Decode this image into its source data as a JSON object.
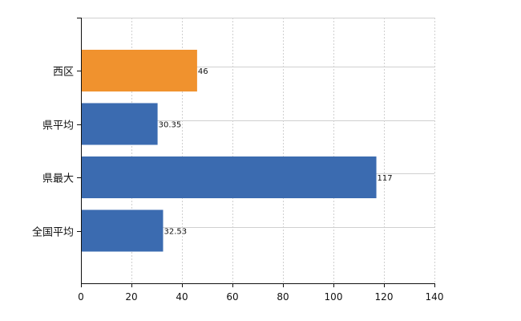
{
  "chart_data": {
    "type": "bar",
    "orientation": "horizontal",
    "categories": [
      "西区",
      "県平均",
      "県最大",
      "全国平均"
    ],
    "values": [
      46,
      30.35,
      117,
      32.53
    ],
    "value_labels": [
      "46",
      "30.35",
      "117",
      "32.53"
    ],
    "bar_colors": [
      "#f0922e",
      "#3b6bb0",
      "#3b6bb0",
      "#3b6bb0"
    ],
    "xlim": [
      0,
      140
    ],
    "x_ticks": [
      0,
      20,
      40,
      60,
      80,
      100,
      120,
      140
    ],
    "grid": true,
    "title": "",
    "xlabel": "",
    "ylabel": ""
  }
}
